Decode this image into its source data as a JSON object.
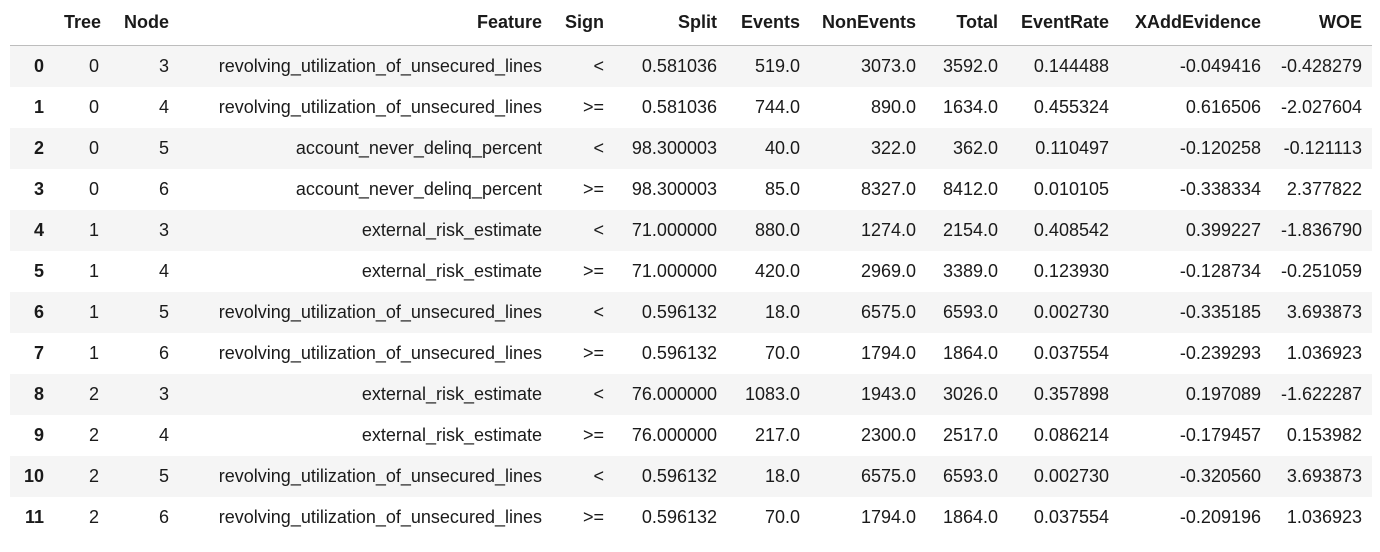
{
  "columns": [
    "",
    "Tree",
    "Node",
    "Feature",
    "Sign",
    "Split",
    "Events",
    "NonEvents",
    "Total",
    "EventRate",
    "XAddEvidence",
    "WOE"
  ],
  "rows": [
    [
      "0",
      "0",
      "3",
      "revolving_utilization_of_unsecured_lines",
      "<",
      "0.581036",
      "519.0",
      "3073.0",
      "3592.0",
      "0.144488",
      "-0.049416",
      "-0.428279"
    ],
    [
      "1",
      "0",
      "4",
      "revolving_utilization_of_unsecured_lines",
      ">=",
      "0.581036",
      "744.0",
      "890.0",
      "1634.0",
      "0.455324",
      "0.616506",
      "-2.027604"
    ],
    [
      "2",
      "0",
      "5",
      "account_never_delinq_percent",
      "<",
      "98.300003",
      "40.0",
      "322.0",
      "362.0",
      "0.110497",
      "-0.120258",
      "-0.121113"
    ],
    [
      "3",
      "0",
      "6",
      "account_never_delinq_percent",
      ">=",
      "98.300003",
      "85.0",
      "8327.0",
      "8412.0",
      "0.010105",
      "-0.338334",
      "2.377822"
    ],
    [
      "4",
      "1",
      "3",
      "external_risk_estimate",
      "<",
      "71.000000",
      "880.0",
      "1274.0",
      "2154.0",
      "0.408542",
      "0.399227",
      "-1.836790"
    ],
    [
      "5",
      "1",
      "4",
      "external_risk_estimate",
      ">=",
      "71.000000",
      "420.0",
      "2969.0",
      "3389.0",
      "0.123930",
      "-0.128734",
      "-0.251059"
    ],
    [
      "6",
      "1",
      "5",
      "revolving_utilization_of_unsecured_lines",
      "<",
      "0.596132",
      "18.0",
      "6575.0",
      "6593.0",
      "0.002730",
      "-0.335185",
      "3.693873"
    ],
    [
      "7",
      "1",
      "6",
      "revolving_utilization_of_unsecured_lines",
      ">=",
      "0.596132",
      "70.0",
      "1794.0",
      "1864.0",
      "0.037554",
      "-0.239293",
      "1.036923"
    ],
    [
      "8",
      "2",
      "3",
      "external_risk_estimate",
      "<",
      "76.000000",
      "1083.0",
      "1943.0",
      "3026.0",
      "0.357898",
      "0.197089",
      "-1.622287"
    ],
    [
      "9",
      "2",
      "4",
      "external_risk_estimate",
      ">=",
      "76.000000",
      "217.0",
      "2300.0",
      "2517.0",
      "0.086214",
      "-0.179457",
      "0.153982"
    ],
    [
      "10",
      "2",
      "5",
      "revolving_utilization_of_unsecured_lines",
      "<",
      "0.596132",
      "18.0",
      "6575.0",
      "6593.0",
      "0.002730",
      "-0.320560",
      "3.693873"
    ],
    [
      "11",
      "2",
      "6",
      "revolving_utilization_of_unsecured_lines",
      ">=",
      "0.596132",
      "70.0",
      "1794.0",
      "1864.0",
      "0.037554",
      "-0.209196",
      "1.036923"
    ]
  ]
}
